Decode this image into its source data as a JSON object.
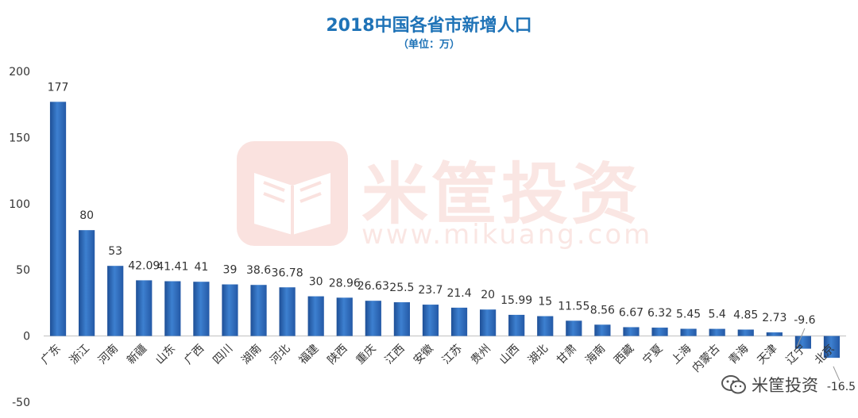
{
  "chart_data": {
    "type": "bar",
    "title": "2018中国各省市新增人口",
    "subtitle": "（单位：万）",
    "xlabel": "",
    "ylabel": "",
    "ylim": [
      -50,
      200
    ],
    "yticks": [
      200,
      150,
      100,
      50,
      0,
      -50
    ],
    "grid": false,
    "categories": [
      "广东",
      "浙江",
      "河南",
      "新疆",
      "山东",
      "广西",
      "四川",
      "湖南",
      "河北",
      "福建",
      "陕西",
      "重庆",
      "江西",
      "安徽",
      "江苏",
      "贵州",
      "山西",
      "湖北",
      "甘肃",
      "海南",
      "西藏",
      "宁夏",
      "上海",
      "内蒙古",
      "青海",
      "天津",
      "辽宁",
      "北京"
    ],
    "values": [
      177,
      80,
      53,
      42.09,
      41.41,
      41,
      39,
      38.6,
      36.78,
      30,
      28.96,
      26.63,
      25.5,
      23.7,
      21.4,
      20,
      15.99,
      15,
      11.55,
      8.56,
      6.67,
      6.32,
      5.45,
      5.4,
      4.85,
      2.73,
      -9.6,
      -16.5
    ],
    "labels": [
      "177",
      "80",
      "53",
      "42.09",
      "41.41",
      "41",
      "39",
      "38.6",
      "36.78",
      "30",
      "28.96",
      "26.63",
      "25.5",
      "23.7",
      "21.4",
      "20",
      "15.99",
      "15",
      "11.55",
      "8.56",
      "6.67",
      "6.32",
      "5.45",
      "5.4",
      "4.85",
      "2.73",
      "-9.6",
      "-16.5"
    ],
    "bar_color": "#2f6fc0"
  },
  "watermark": {
    "brand": "米筐投资",
    "url": "www.mikuang.com",
    "color": "#e2543f",
    "logo_icon": "book-logo-icon"
  },
  "footer": {
    "account": "米筐投资",
    "icon": "wechat-icon"
  }
}
